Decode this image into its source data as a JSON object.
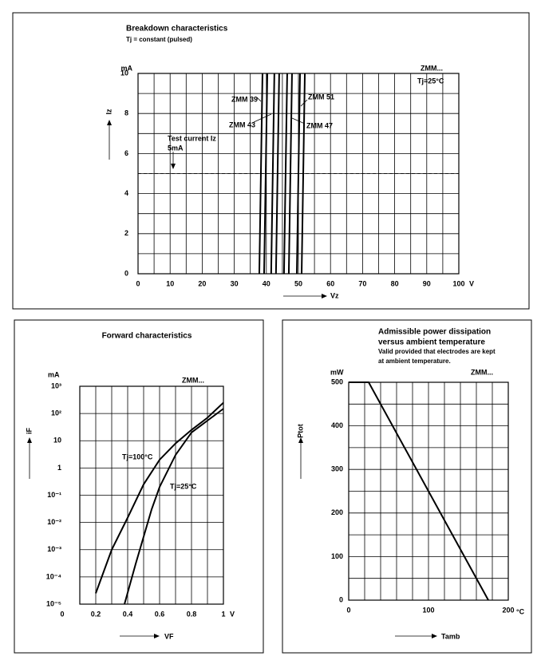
{
  "chart_data": [
    {
      "type": "line",
      "title": "Breakdown characteristics",
      "subtitle": "Tj = constant (pulsed)",
      "y_label": "Iz",
      "y_unit": "mA",
      "x_label": "Vz",
      "x_unit": "V",
      "xlim": [
        0,
        100
      ],
      "xticks": [
        0,
        10,
        20,
        30,
        40,
        50,
        60,
        70,
        80,
        90,
        100
      ],
      "ylim": [
        0,
        10
      ],
      "yticks": [
        0,
        2,
        4,
        6,
        8,
        10
      ],
      "grid": true,
      "color": "#000000",
      "series": [
        {
          "name": "ZMM 39",
          "x": [
            37.8,
            38.8,
            39.3,
            39.3,
            40.3
          ],
          "values": [
            0,
            10,
            null,
            0,
            10
          ]
        },
        {
          "name": "ZMM 43",
          "x": [
            41.5,
            42.5,
            43,
            43,
            44
          ],
          "values": [
            0,
            10,
            null,
            0,
            10
          ]
        },
        {
          "name": "ZMM 47",
          "x": [
            45.5,
            46.5,
            47,
            47,
            48
          ],
          "values": [
            0,
            10,
            null,
            0,
            10
          ]
        },
        {
          "name": "ZMM 51",
          "x": [
            49.5,
            50.5,
            51,
            51,
            52
          ],
          "values": [
            0,
            10,
            null,
            0,
            10
          ]
        }
      ],
      "reference_line": {
        "value": 5,
        "label": [
          "Test current Iz",
          "5mA"
        ]
      },
      "annotations": [
        "ZMM...",
        "Tj=25°C"
      ]
    },
    {
      "type": "line",
      "title": "Forward characteristics",
      "y_label": "iF",
      "y_unit": "mA",
      "x_label": "VF",
      "x_unit": "V",
      "x_origin_label": "0",
      "xlim": [
        0.1,
        1
      ],
      "xticks": [
        0.2,
        0.4,
        0.6,
        0.8,
        1
      ],
      "ylim": [
        1e-05,
        1000
      ],
      "log_y": true,
      "grid": true,
      "color": "#000000",
      "yticks": [
        {
          "value": 1e-05,
          "label": "10⁻⁵"
        },
        {
          "value": 0.0001,
          "label": "10⁻⁴"
        },
        {
          "value": 0.001,
          "label": "10⁻³"
        },
        {
          "value": 0.01,
          "label": "10⁻²"
        },
        {
          "value": 0.1,
          "label": "10⁻¹"
        },
        1,
        10,
        {
          "value": 100,
          "label": "10²"
        },
        {
          "value": 1000,
          "label": "10³"
        }
      ],
      "series": [
        {
          "name": "Tj=100°C",
          "x": [
            0.2,
            0.3,
            0.4,
            0.5,
            0.6,
            0.7,
            0.8,
            0.9,
            1
          ],
          "values": [
            2.5e-05,
            0.001,
            0.015,
            0.25,
            2,
            8,
            25,
            70,
            250
          ]
        },
        {
          "name": "Tj=25°C",
          "x": [
            0.38,
            0.45,
            0.5,
            0.55,
            0.6,
            0.7,
            0.8,
            0.9,
            1
          ],
          "values": [
            1e-05,
            0.0003,
            0.003,
            0.03,
            0.2,
            3,
            20,
            55,
            150
          ]
        }
      ],
      "annotations": [
        "ZMM..."
      ]
    },
    {
      "type": "line",
      "title": [
        "Admissible power dissipation",
        "versus ambient temperature"
      ],
      "note": [
        "Valid provided that electrodes are kept",
        "at ambient temperature."
      ],
      "y_label": "Ptot",
      "y_unit": "mW",
      "x_label": "Tamb",
      "x_unit": "°C",
      "xlim": [
        0,
        200
      ],
      "xticks": [
        0,
        100,
        200
      ],
      "ylim": [
        0,
        500
      ],
      "yticks": [
        0,
        100,
        200,
        300,
        400,
        500
      ],
      "grid": true,
      "color": "#000000",
      "x": [
        0,
        25,
        175
      ],
      "values": [
        500,
        500,
        0
      ],
      "annotations": [
        "ZMM..."
      ]
    }
  ]
}
